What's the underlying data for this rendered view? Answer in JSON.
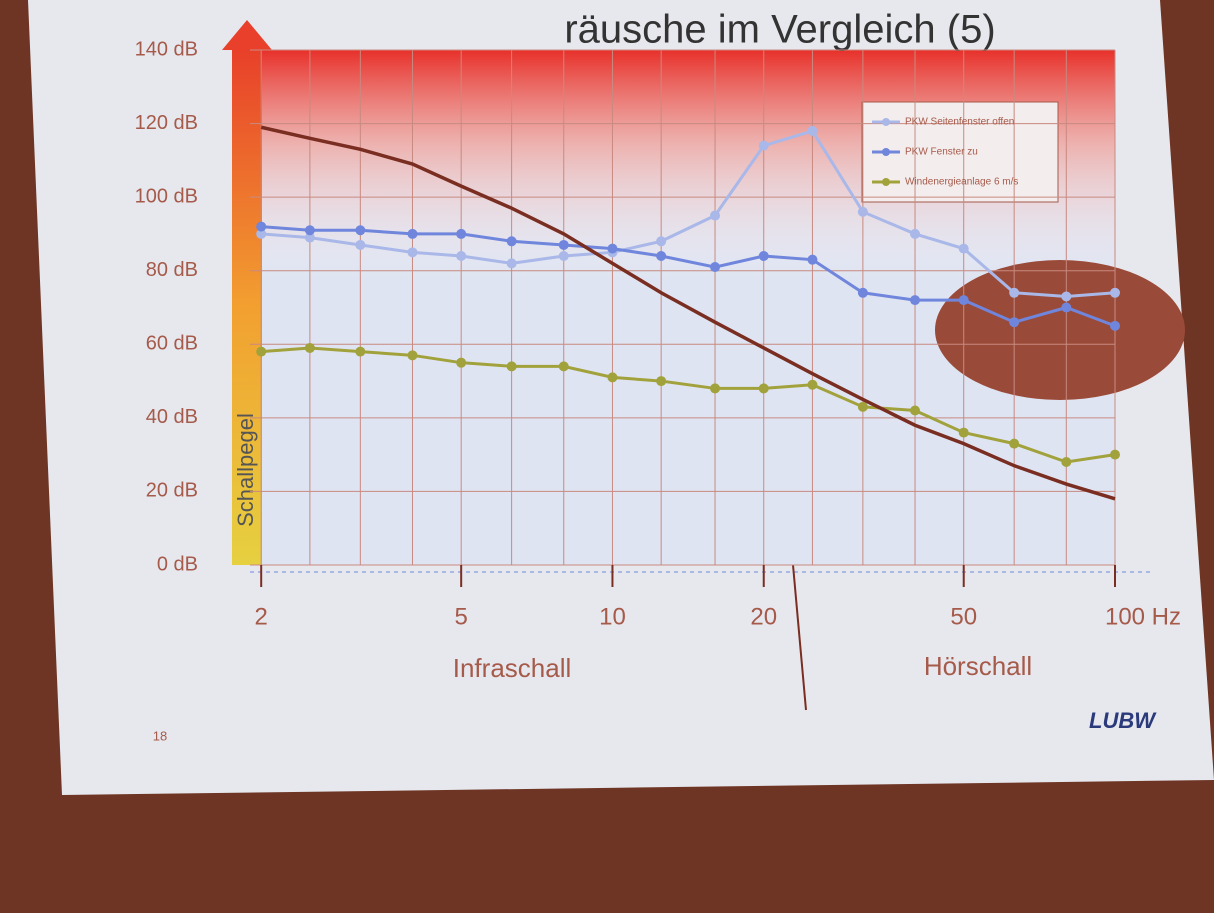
{
  "chart_data": {
    "type": "line",
    "title": "räusche im Vergleich (5)",
    "ylabel": "Schallpegel",
    "annotations": [
      "Infraschall",
      "Hörschall"
    ],
    "page_number": "18",
    "logo": "LUBW",
    "log_x": true,
    "grid": true,
    "legend": "upper right",
    "x": [
      2,
      2.5,
      3.15,
      4,
      5,
      6.3,
      8,
      10,
      12.5,
      16,
      20,
      25,
      31.5,
      40,
      50,
      63,
      80,
      100
    ],
    "series": [
      {
        "name": "PKW Seitenfenster offen",
        "color": "#a9b8e8",
        "values": [
          90,
          89,
          87,
          85,
          84,
          82,
          84,
          85,
          88,
          95,
          114,
          118,
          96,
          90,
          86,
          74,
          73,
          74
        ]
      },
      {
        "name": "PKW Fenster zu",
        "color": "#6f86dc",
        "values": [
          92,
          91,
          91,
          90,
          90,
          88,
          87,
          86,
          84,
          81,
          84,
          83,
          74,
          72,
          72,
          66,
          70,
          65
        ]
      },
      {
        "name": "Windenergieanlage 6 m/s",
        "color": "#a2a23c",
        "values": [
          58,
          59,
          58,
          57,
          55,
          54,
          54,
          51,
          50,
          48,
          48,
          49,
          43,
          42,
          36,
          33,
          28,
          30
        ]
      },
      {
        "color": "#7a2e22",
        "values": [
          119,
          116,
          113,
          109,
          103,
          97,
          90,
          82,
          74,
          66,
          59,
          52,
          45,
          38,
          33,
          27,
          22,
          18
        ]
      }
    ],
    "xlim": [
      1.9,
      100
    ],
    "xticks": [
      2,
      5,
      10,
      20,
      50,
      {
        "value": 100,
        "label": "100 Hz"
      }
    ],
    "ylim": [
      0,
      140
    ],
    "yticks": [
      {
        "value": 0,
        "label": "0 dB"
      },
      {
        "value": 20,
        "label": "20 dB"
      },
      {
        "value": 40,
        "label": "40 dB"
      },
      {
        "value": 60,
        "label": "60 dB"
      },
      {
        "value": 80,
        "label": "80 dB"
      },
      {
        "value": 100,
        "label": "100 dB"
      },
      {
        "value": 120,
        "label": "120 dB"
      },
      {
        "value": 140,
        "label": "140 dB"
      }
    ]
  }
}
